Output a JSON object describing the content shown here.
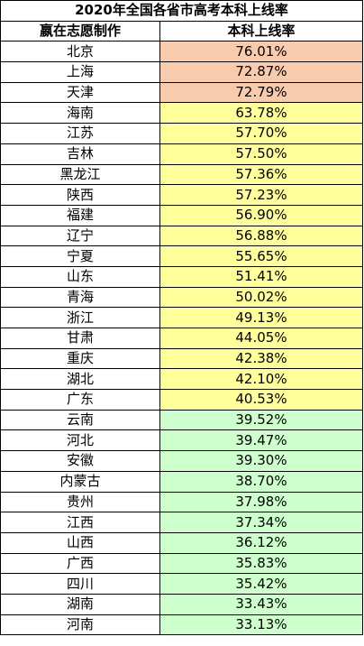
{
  "table": {
    "title": "2020年全国各省市高考本科上线率",
    "headers": [
      "嬴在志愿制作",
      "本科上线率"
    ],
    "rows": [
      {
        "province": "北京",
        "rate": "76.01%",
        "tier": "orange"
      },
      {
        "province": "上海",
        "rate": "72.87%",
        "tier": "orange"
      },
      {
        "province": "天津",
        "rate": "72.79%",
        "tier": "orange"
      },
      {
        "province": "海南",
        "rate": "63.78%",
        "tier": "yellow"
      },
      {
        "province": "江苏",
        "rate": "57.70%",
        "tier": "yellow"
      },
      {
        "province": "吉林",
        "rate": "57.50%",
        "tier": "yellow"
      },
      {
        "province": "黑龙江",
        "rate": "57.36%",
        "tier": "yellow"
      },
      {
        "province": "陕西",
        "rate": "57.23%",
        "tier": "yellow"
      },
      {
        "province": "福建",
        "rate": "56.90%",
        "tier": "yellow"
      },
      {
        "province": "辽宁",
        "rate": "56.88%",
        "tier": "yellow"
      },
      {
        "province": "宁夏",
        "rate": "55.65%",
        "tier": "yellow"
      },
      {
        "province": "山东",
        "rate": "51.41%",
        "tier": "yellow"
      },
      {
        "province": "青海",
        "rate": "50.02%",
        "tier": "yellow"
      },
      {
        "province": "浙江",
        "rate": "49.13%",
        "tier": "yellow"
      },
      {
        "province": "甘肃",
        "rate": "44.05%",
        "tier": "yellow"
      },
      {
        "province": "重庆",
        "rate": "42.38%",
        "tier": "yellow"
      },
      {
        "province": "湖北",
        "rate": "42.10%",
        "tier": "yellow"
      },
      {
        "province": "广东",
        "rate": "40.53%",
        "tier": "yellow"
      },
      {
        "province": "云南",
        "rate": "39.52%",
        "tier": "green"
      },
      {
        "province": "河北",
        "rate": "39.47%",
        "tier": "green"
      },
      {
        "province": "安徽",
        "rate": "39.30%",
        "tier": "green"
      },
      {
        "province": "内蒙古",
        "rate": "38.70%",
        "tier": "green"
      },
      {
        "province": "贵州",
        "rate": "37.98%",
        "tier": "green"
      },
      {
        "province": "江西",
        "rate": "37.34%",
        "tier": "green"
      },
      {
        "province": "山西",
        "rate": "36.12%",
        "tier": "green"
      },
      {
        "province": "广西",
        "rate": "35.83%",
        "tier": "green"
      },
      {
        "province": "四川",
        "rate": "35.42%",
        "tier": "green"
      },
      {
        "province": "湖南",
        "rate": "33.43%",
        "tier": "green"
      },
      {
        "province": "河南",
        "rate": "33.13%",
        "tier": "green"
      }
    ]
  },
  "colors": {
    "orange": "#f8cbad",
    "yellow": "#ffff99",
    "green": "#ccffcc",
    "border": "#000000"
  }
}
